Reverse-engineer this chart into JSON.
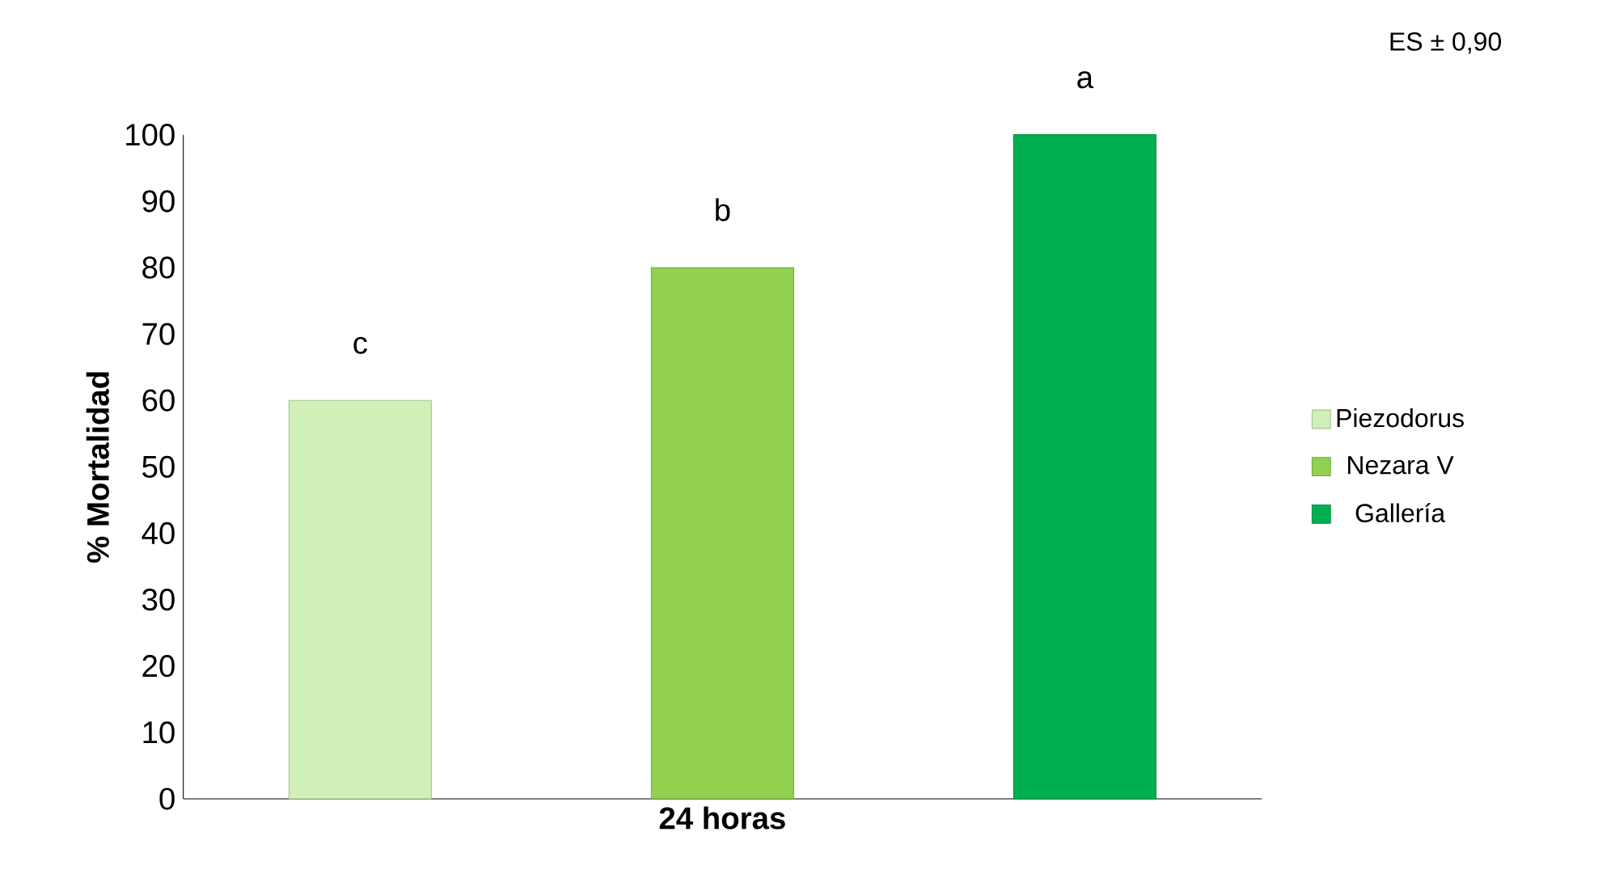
{
  "chart_data": {
    "type": "bar",
    "categories": [
      "24 horas"
    ],
    "ylabel": "% Mortalidad",
    "series": [
      {
        "name": "Piezodorus",
        "color": "#d0f0b8",
        "values": [
          60
        ],
        "value_labels": [
          "c"
        ]
      },
      {
        "name": "Nezara V",
        "color": "#92d050",
        "values": [
          80
        ],
        "value_labels": [
          "b"
        ]
      },
      {
        "name": "Gallería",
        "color": "#00b050",
        "values": [
          100
        ],
        "value_labels": [
          "a"
        ]
      }
    ],
    "ylim": [
      0,
      100
    ],
    "yticks": [
      0,
      10,
      20,
      30,
      40,
      50,
      60,
      70,
      80,
      90,
      100
    ],
    "annotations": [
      "ES ± 0,90"
    ],
    "legend": "right",
    "grid": false
  }
}
